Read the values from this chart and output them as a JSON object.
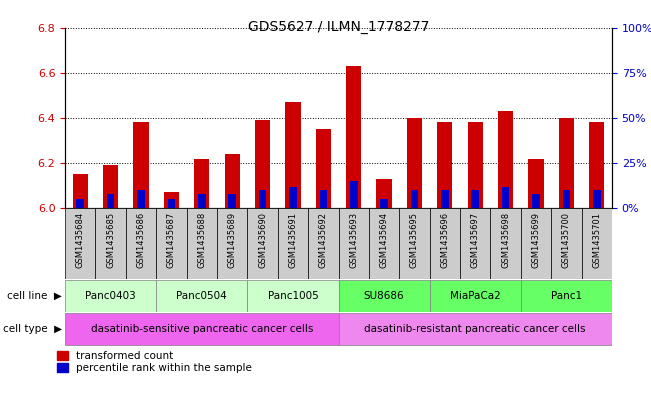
{
  "title": "GDS5627 / ILMN_1778277",
  "samples": [
    "GSM1435684",
    "GSM1435685",
    "GSM1435686",
    "GSM1435687",
    "GSM1435688",
    "GSM1435689",
    "GSM1435690",
    "GSM1435691",
    "GSM1435692",
    "GSM1435693",
    "GSM1435694",
    "GSM1435695",
    "GSM1435696",
    "GSM1435697",
    "GSM1435698",
    "GSM1435699",
    "GSM1435700",
    "GSM1435701"
  ],
  "transformed_count": [
    6.15,
    6.19,
    6.38,
    6.07,
    6.22,
    6.24,
    6.39,
    6.47,
    6.35,
    6.63,
    6.13,
    6.4,
    6.38,
    6.38,
    6.43,
    6.22,
    6.4,
    6.38
  ],
  "percentile": [
    5,
    8,
    10,
    5,
    8,
    8,
    10,
    12,
    10,
    15,
    5,
    10,
    10,
    10,
    12,
    8,
    10,
    10
  ],
  "ylim_left": [
    6.0,
    6.8
  ],
  "ylim_right": [
    0,
    100
  ],
  "yticks_left": [
    6.0,
    6.2,
    6.4,
    6.6,
    6.8
  ],
  "yticks_right": [
    0,
    25,
    50,
    75,
    100
  ],
  "cell_lines": [
    {
      "name": "Panc0403",
      "start": 0,
      "end": 3,
      "color": "#ccffcc"
    },
    {
      "name": "Panc0504",
      "start": 3,
      "end": 6,
      "color": "#ccffcc"
    },
    {
      "name": "Panc1005",
      "start": 6,
      "end": 9,
      "color": "#ccffcc"
    },
    {
      "name": "SU8686",
      "start": 9,
      "end": 12,
      "color": "#66ff66"
    },
    {
      "name": "MiaPaCa2",
      "start": 12,
      "end": 15,
      "color": "#66ff66"
    },
    {
      "name": "Panc1",
      "start": 15,
      "end": 18,
      "color": "#66ff66"
    }
  ],
  "cell_types": [
    {
      "name": "dasatinib-sensitive pancreatic cancer cells",
      "start": 0,
      "end": 9,
      "color": "#ee66ee"
    },
    {
      "name": "dasatinib-resistant pancreatic cancer cells",
      "start": 9,
      "end": 18,
      "color": "#ee88ee"
    }
  ],
  "bar_color_red": "#cc0000",
  "bar_color_blue": "#0000cc",
  "tick_label_color_left": "#cc0000",
  "tick_label_color_right": "#0000cc",
  "tick_bg_color": "#cccccc",
  "base_value": 6.0,
  "bar_width": 0.5,
  "blue_bar_width": 0.25
}
